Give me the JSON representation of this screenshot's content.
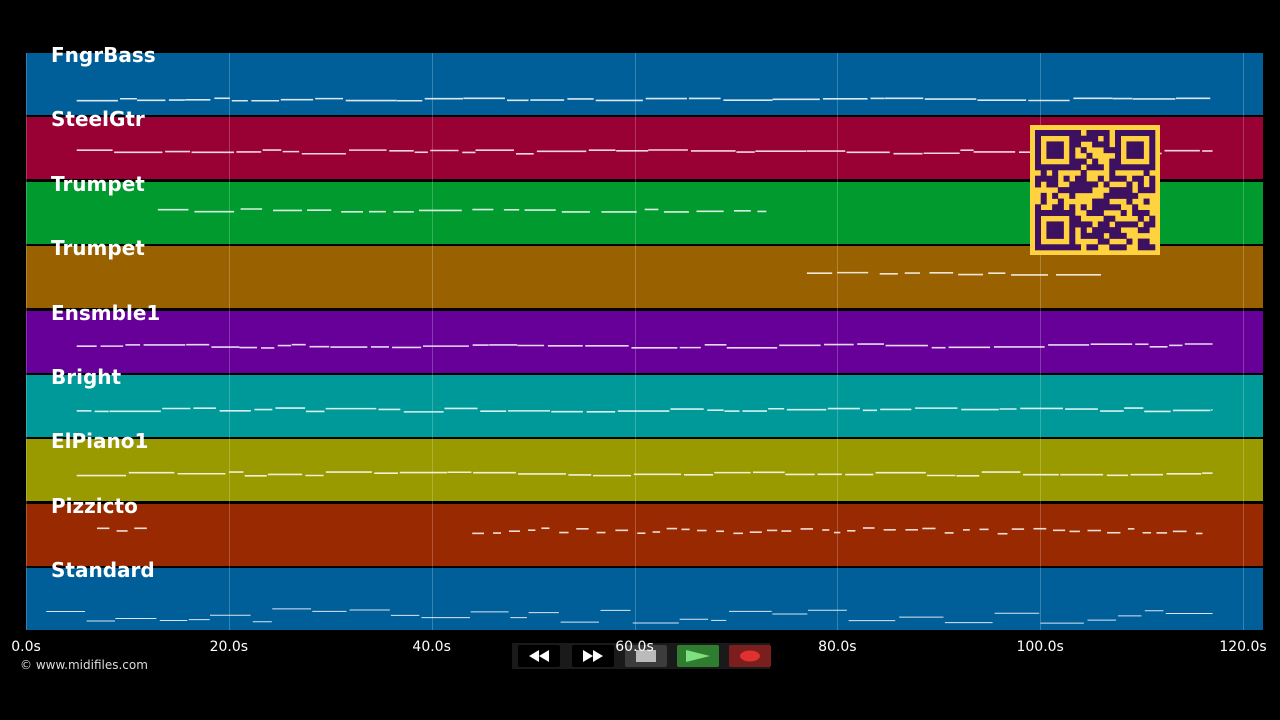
{
  "tracks": [
    {
      "label": "FngrBass",
      "color": "#005f99"
    },
    {
      "label": "SteelGtr",
      "color": "#990033"
    },
    {
      "label": "Trumpet",
      "color": "#009a2e"
    },
    {
      "label": "Trumpet",
      "color": "#996100"
    },
    {
      "label": "Ensmble1",
      "color": "#660099"
    },
    {
      "label": "Bright",
      "color": "#009999"
    },
    {
      "label": "ElPiano1",
      "color": "#999900"
    },
    {
      "label": "Pizzicto",
      "color": "#992900"
    },
    {
      "label": "Standard",
      "color": "#005f99"
    }
  ],
  "timeline": {
    "ticks": [
      "0.0s",
      "20.0s",
      "40.0s",
      "60.0s",
      "80.0s",
      "100.0s",
      "120.0s"
    ],
    "max_seconds": 122
  },
  "copyright": "© www.midifiles.com",
  "transport": {
    "rewind_icon": "rewind-icon",
    "forward_icon": "fast-forward-icon",
    "stop_icon": "stop-icon",
    "play_icon": "play-icon",
    "record_icon": "record-icon"
  },
  "overlay": {
    "qr_icon": "qr-code-icon",
    "qr_color": "#ffd23f"
  }
}
